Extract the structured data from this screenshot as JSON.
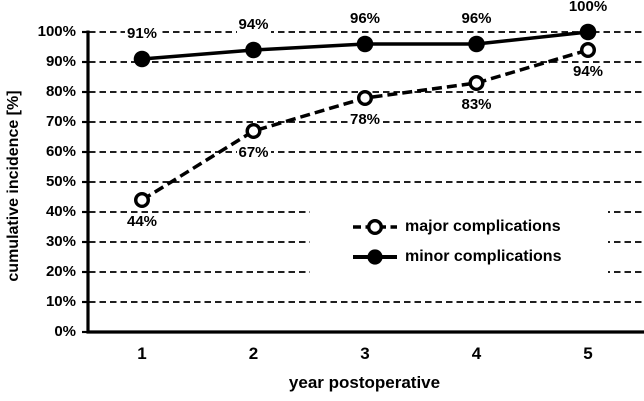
{
  "chart_data": {
    "type": "line",
    "title": "",
    "xlabel": "year postoperative",
    "ylabel": "cumulative incidence [%]",
    "categories": [
      "1",
      "2",
      "3",
      "4",
      "5"
    ],
    "y_tick_labels": [
      "0%",
      "10%",
      "20%",
      "30%",
      "40%",
      "50%",
      "60%",
      "70%",
      "80%",
      "90%",
      "100%"
    ],
    "ylim": [
      0,
      100
    ],
    "grid": "horizontal-dashed",
    "legend_position": "inside-lower-right",
    "colors": {
      "ink": "#000000",
      "background": "#ffffff"
    },
    "series": [
      {
        "name": "major complications",
        "line_style": "dashed",
        "marker": "open-circle",
        "values": [
          44,
          67,
          78,
          83,
          94
        ],
        "data_labels": [
          "44%",
          "67%",
          "78%",
          "83%",
          "94%"
        ],
        "label_position": "below"
      },
      {
        "name": "minor complications",
        "line_style": "solid",
        "marker": "filled-circle",
        "values": [
          91,
          94,
          96,
          96,
          100
        ],
        "data_labels": [
          "91%",
          "94%",
          "96%",
          "96%",
          "100%"
        ],
        "label_position": "above"
      }
    ]
  }
}
